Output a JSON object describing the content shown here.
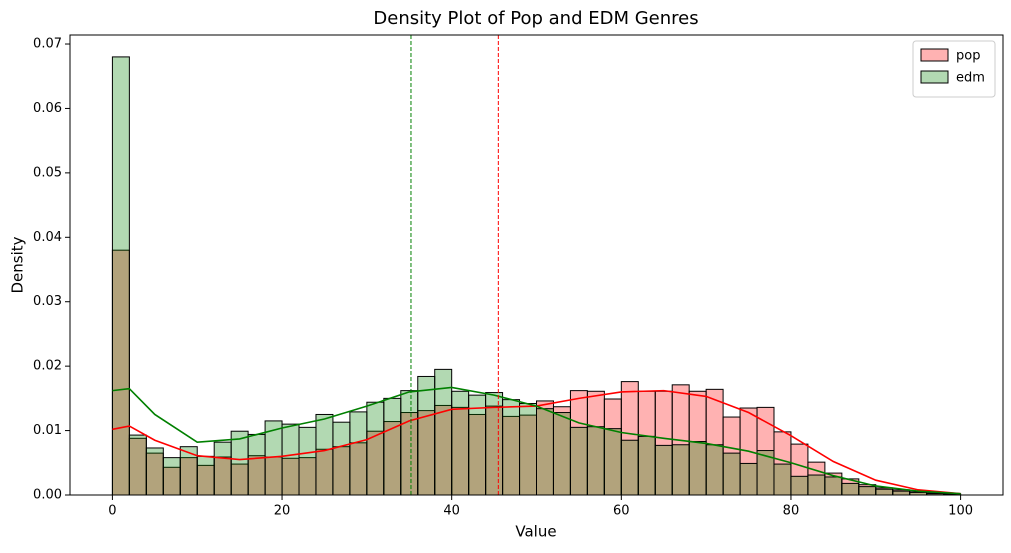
{
  "chart_data": {
    "type": "histogram",
    "title": "Density Plot of Pop and EDM Genres",
    "x_label": "Value",
    "y_label": "Density",
    "bins": [
      0,
      2,
      4,
      6,
      8,
      10,
      12,
      14,
      16,
      18,
      20,
      22,
      24,
      26,
      28,
      30,
      32,
      34,
      36,
      38,
      40,
      42,
      44,
      46,
      48,
      50,
      52,
      54,
      56,
      58,
      60,
      62,
      64,
      66,
      68,
      70,
      72,
      74,
      76,
      78,
      80,
      82,
      84,
      86,
      88,
      90,
      92,
      94,
      96,
      98,
      100
    ],
    "series": [
      {
        "name": "pop",
        "color": "#ff0000",
        "line_color": "#ff0000",
        "values": [
          0.038,
          0.0088,
          0.0065,
          0.0043,
          0.0058,
          0.0046,
          0.0059,
          0.0048,
          0.0061,
          0.0059,
          0.0057,
          0.0058,
          0.0071,
          0.0075,
          0.0081,
          0.0099,
          0.0114,
          0.0128,
          0.0131,
          0.0139,
          0.0136,
          0.0125,
          0.0138,
          0.0122,
          0.0124,
          0.0146,
          0.0137,
          0.0162,
          0.0161,
          0.0149,
          0.0176,
          0.0161,
          0.0161,
          0.0171,
          0.0161,
          0.0164,
          0.0121,
          0.0135,
          0.0136,
          0.0098,
          0.0079,
          0.0051,
          0.0034,
          0.0025,
          0.0016,
          0.0011,
          0.0008,
          0.0005,
          0.0003,
          0.0002
        ],
        "kde": {
          "x": [
            0,
            2,
            5,
            10,
            15,
            20,
            25,
            30,
            35,
            40,
            45,
            50,
            55,
            60,
            65,
            70,
            75,
            80,
            85,
            90,
            95,
            100
          ],
          "values": [
            0.0102,
            0.0107,
            0.0085,
            0.0061,
            0.0055,
            0.006,
            0.0069,
            0.0086,
            0.0115,
            0.0133,
            0.0136,
            0.0138,
            0.015,
            0.016,
            0.0162,
            0.0153,
            0.0128,
            0.0092,
            0.0052,
            0.0023,
            0.0008,
            0.0002
          ]
        }
      },
      {
        "name": "edm",
        "color": "#008000",
        "line_color": "#008000",
        "values": [
          0.068,
          0.0093,
          0.0073,
          0.0058,
          0.0075,
          0.006,
          0.0082,
          0.0099,
          0.0094,
          0.0115,
          0.011,
          0.0105,
          0.0125,
          0.0113,
          0.0129,
          0.0144,
          0.015,
          0.0162,
          0.0184,
          0.0195,
          0.0161,
          0.0155,
          0.0159,
          0.0148,
          0.0142,
          0.0134,
          0.0128,
          0.0105,
          0.0106,
          0.0103,
          0.0085,
          0.0091,
          0.0077,
          0.0078,
          0.0083,
          0.0078,
          0.0065,
          0.0049,
          0.0069,
          0.0048,
          0.0029,
          0.0031,
          0.0028,
          0.0018,
          0.0013,
          0.0009,
          0.0006,
          0.0004,
          0.0002,
          0.0001
        ],
        "kde": {
          "x": [
            0,
            2,
            5,
            10,
            15,
            20,
            25,
            30,
            35,
            40,
            45,
            50,
            55,
            60,
            65,
            70,
            75,
            80,
            85,
            90,
            95,
            100
          ],
          "values": [
            0.0162,
            0.0165,
            0.0125,
            0.0082,
            0.0087,
            0.0104,
            0.0118,
            0.0138,
            0.016,
            0.0167,
            0.0155,
            0.0138,
            0.0112,
            0.0097,
            0.0088,
            0.008,
            0.0068,
            0.005,
            0.003,
            0.0014,
            0.0006,
            0.0002
          ]
        }
      }
    ],
    "vlines": [
      {
        "value": 35.2,
        "color": "#008000"
      },
      {
        "value": 45.5,
        "color": "#ff0000"
      }
    ],
    "fill_opacity": 0.3,
    "xlim": [
      -5,
      105
    ],
    "xticks": [
      0,
      20,
      40,
      60,
      80,
      100
    ],
    "ylim": [
      0,
      0.0714
    ],
    "yticks": [
      {
        "value": 0,
        "label": "0.00"
      },
      0.01,
      0.02,
      0.03,
      0.04,
      0.05,
      0.06,
      0.07
    ],
    "legend": "upper right",
    "grid": false
  }
}
